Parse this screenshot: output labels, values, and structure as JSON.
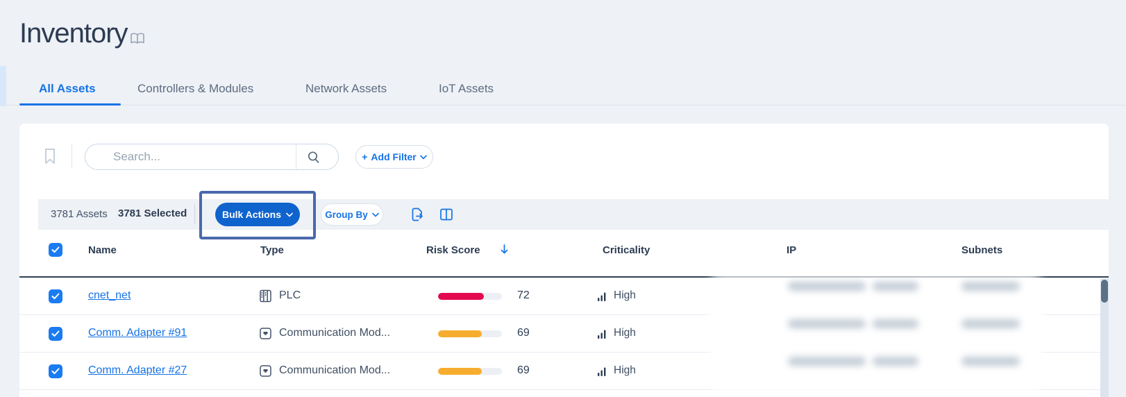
{
  "page": {
    "title": "Inventory"
  },
  "tabs": [
    {
      "label": "All Assets",
      "active": true
    },
    {
      "label": "Controllers & Modules",
      "active": false
    },
    {
      "label": "Network Assets",
      "active": false
    },
    {
      "label": "IoT Assets",
      "active": false
    }
  ],
  "search": {
    "placeholder": "Search..."
  },
  "filter": {
    "plus": "+",
    "label": "Add Filter"
  },
  "toolbar": {
    "assets_count": "3781 Assets",
    "selected_count": "3781 Selected",
    "bulk_actions_label": "Bulk Actions",
    "group_by_label": "Group By"
  },
  "table": {
    "columns": [
      "Name",
      "Type",
      "Risk Score",
      "Criticality",
      "IP",
      "Subnets"
    ],
    "sorted_column": "Risk Score",
    "sort_direction": "desc",
    "rows": [
      {
        "name": "cnet_net",
        "type": "PLC",
        "type_icon": "plc-icon",
        "risk_score": 72,
        "risk_color": "#e3094f",
        "criticality": "High",
        "ip_redacted": true,
        "subnets_redacted": true
      },
      {
        "name": "Comm. Adapter #91",
        "type": "Communication Mod...",
        "type_icon": "communication-module-icon",
        "risk_score": 69,
        "risk_color": "#f6ad2f",
        "criticality": "High",
        "ip_redacted": true,
        "subnets_redacted": true
      },
      {
        "name": "Comm. Adapter #27",
        "type": "Communication Mod...",
        "type_icon": "communication-module-icon",
        "risk_score": 69,
        "risk_color": "#f6ad2f",
        "criticality": "High",
        "ip_redacted": true,
        "subnets_redacted": true
      }
    ]
  },
  "colors": {
    "accent_blue": "#1673e6",
    "bulk_button_blue": "#0f63cd",
    "highlight_border": "#4a69ad",
    "risk_high_red": "#e3094f",
    "risk_medium_orange": "#f6ad2f",
    "header_navy": "#2c3c52",
    "page_background": "#eef1f6"
  }
}
